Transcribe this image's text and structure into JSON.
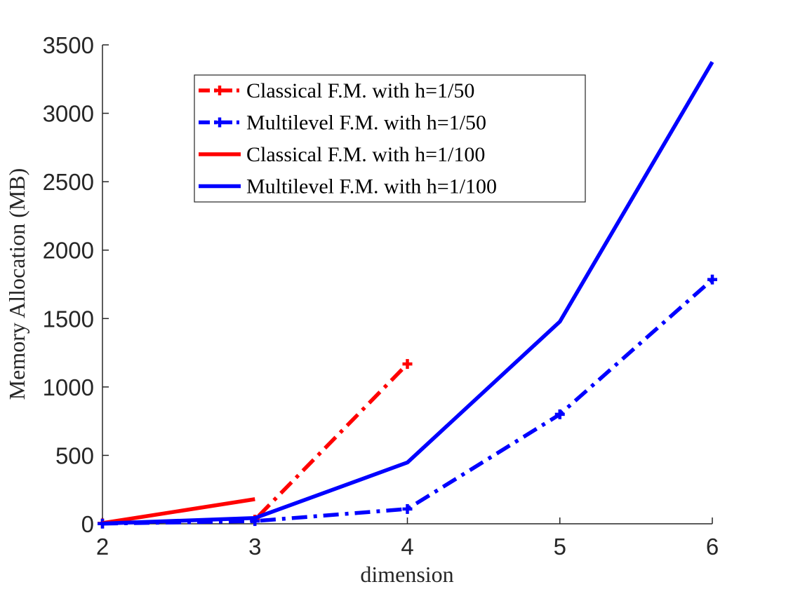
{
  "chart_data": {
    "type": "line",
    "title": "",
    "xlabel": "dimension",
    "ylabel": "Memory Allocation (MB)",
    "xlim": [
      2,
      6
    ],
    "ylim": [
      0,
      3500
    ],
    "xticks": [
      "2",
      "3",
      "4",
      "5",
      "6"
    ],
    "yticks": [
      "0",
      "500",
      "1000",
      "1500",
      "2000",
      "2500",
      "3000",
      "3500"
    ],
    "grid": false,
    "legend_position": "top-center",
    "series": [
      {
        "name": "Classical F.M. with h=1/50",
        "color": "#ff0000",
        "line_style": "dash-dot",
        "marker": "plus",
        "x": [
          2,
          3,
          4
        ],
        "values": [
          3,
          30,
          1168
        ]
      },
      {
        "name": "Multilevel F.M. with h=1/50",
        "color": "#0000ff",
        "line_style": "dash-dot",
        "marker": "plus",
        "x": [
          2,
          3,
          4,
          5,
          6
        ],
        "values": [
          1,
          20,
          108,
          800,
          1785
        ]
      },
      {
        "name": "Classical F.M. with h=1/100",
        "color": "#ff0000",
        "line_style": "solid",
        "marker": "none",
        "x": [
          2,
          3
        ],
        "values": [
          5,
          180
        ]
      },
      {
        "name": "Multilevel F.M. with h=1/100",
        "color": "#0000ff",
        "line_style": "solid",
        "marker": "none",
        "x": [
          2,
          3,
          4,
          5,
          6
        ],
        "values": [
          2,
          42,
          448,
          1478,
          3375
        ]
      }
    ]
  }
}
